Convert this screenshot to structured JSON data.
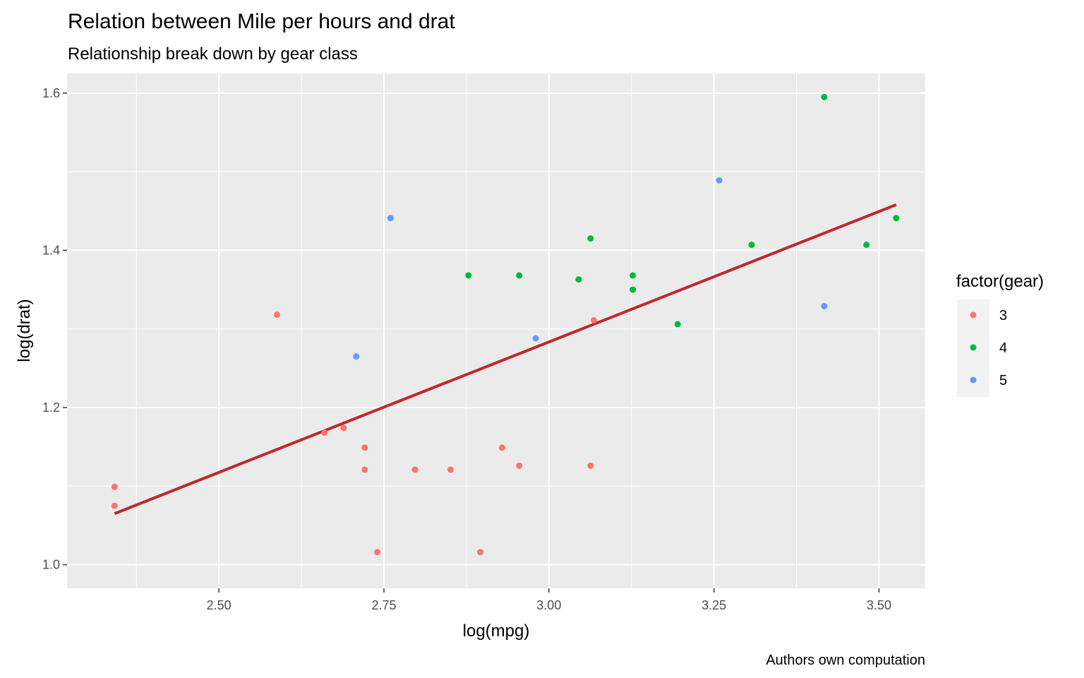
{
  "chart_data": {
    "type": "scatter",
    "title": "Relation between Mile per hours and drat",
    "subtitle": "Relationship break down by gear class",
    "xlabel": "log(mpg)",
    "ylabel": "log(drat)",
    "caption": "Authors own computation",
    "xlim": [
      2.27,
      3.57
    ],
    "ylim": [
      0.97,
      1.625
    ],
    "x_ticks": [
      2.5,
      2.75,
      3.0,
      3.25,
      3.5
    ],
    "x_tick_labels": [
      "2.50",
      "2.75",
      "3.00",
      "3.25",
      "3.50"
    ],
    "y_ticks": [
      1.0,
      1.2,
      1.4,
      1.6
    ],
    "y_tick_labels": [
      "1.0",
      "1.2",
      "1.4",
      "1.6"
    ],
    "grid": true,
    "legend": {
      "title": "factor(gear)",
      "position": "right",
      "entries": [
        {
          "label": "3",
          "color": "#F8766D"
        },
        {
          "label": "4",
          "color": "#00BA38"
        },
        {
          "label": "5",
          "color": "#619CFF"
        }
      ]
    },
    "series": [
      {
        "name": "3",
        "color": "#F8766D",
        "points": [
          [
            2.342,
            1.099
          ],
          [
            2.342,
            1.075
          ],
          [
            2.588,
            1.318
          ],
          [
            2.66,
            1.168
          ],
          [
            2.689,
            1.174
          ],
          [
            2.721,
            1.149
          ],
          [
            2.721,
            1.121
          ],
          [
            2.74,
            1.016
          ],
          [
            2.797,
            1.121
          ],
          [
            2.851,
            1.121
          ],
          [
            2.896,
            1.016
          ],
          [
            2.929,
            1.149
          ],
          [
            2.955,
            1.126
          ],
          [
            3.068,
            1.311
          ],
          [
            3.063,
            1.126
          ]
        ]
      },
      {
        "name": "4",
        "color": "#00BA38",
        "points": [
          [
            2.878,
            1.368
          ],
          [
            2.955,
            1.368
          ],
          [
            3.045,
            1.363
          ],
          [
            3.063,
            1.415
          ],
          [
            3.127,
            1.368
          ],
          [
            3.127,
            1.35
          ],
          [
            3.195,
            1.306
          ],
          [
            3.307,
            1.407
          ],
          [
            3.417,
            1.595
          ],
          [
            3.481,
            1.407
          ],
          [
            3.526,
            1.441
          ]
        ]
      },
      {
        "name": "5",
        "color": "#619CFF",
        "points": [
          [
            2.708,
            1.265
          ],
          [
            2.76,
            1.441
          ],
          [
            2.98,
            1.288
          ],
          [
            3.258,
            1.489
          ],
          [
            3.417,
            1.329
          ]
        ]
      }
    ],
    "trend_line": {
      "color": "#C0272D",
      "points": [
        [
          2.342,
          1.065
        ],
        [
          3.526,
          1.458
        ]
      ]
    }
  }
}
